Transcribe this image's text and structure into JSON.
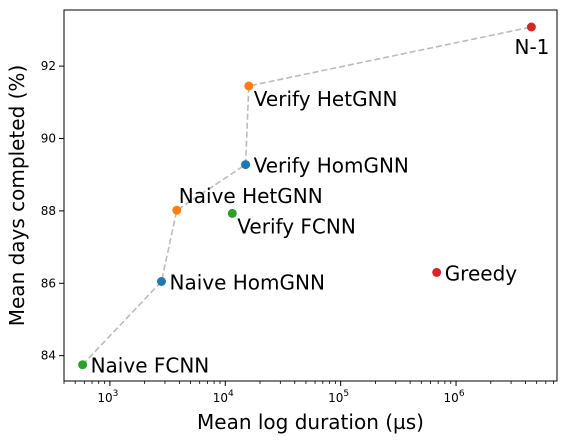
{
  "chart_data": {
    "type": "scatter",
    "xlabel": "Mean log duration (µs)",
    "ylabel": "Mean days completed (%)",
    "xscale": "log",
    "xlim": [
      400,
      7500000
    ],
    "ylim": [
      83.3,
      93.55
    ],
    "xticks": [
      {
        "value": 1000,
        "base": "10",
        "exp": "3"
      },
      {
        "value": 10000,
        "base": "10",
        "exp": "4"
      },
      {
        "value": 100000,
        "base": "10",
        "exp": "5"
      },
      {
        "value": 1000000,
        "base": "10",
        "exp": "6"
      }
    ],
    "yticks": [
      84,
      86,
      88,
      90,
      92
    ],
    "grid": false,
    "points": [
      {
        "label": "Naive FCNN",
        "x": 580,
        "y": 83.75,
        "color": "#2ca02c",
        "label_pos": "right"
      },
      {
        "label": "Naive HomGNN",
        "x": 2800,
        "y": 86.05,
        "color": "#1f77b4",
        "label_pos": "right"
      },
      {
        "label": "Naive HetGNN",
        "x": 3800,
        "y": 88.02,
        "color": "#ff7f0e",
        "label_pos": "above-right"
      },
      {
        "label": "Verify FCNN",
        "x": 11500,
        "y": 87.93,
        "color": "#2ca02c",
        "label_pos": "below-right"
      },
      {
        "label": "Verify HomGNN",
        "x": 15000,
        "y": 89.28,
        "color": "#1f77b4",
        "label_pos": "right"
      },
      {
        "label": "Verify HetGNN",
        "x": 16000,
        "y": 91.45,
        "color": "#ff7f0e",
        "label_pos": "below-right"
      },
      {
        "label": "Greedy",
        "x": 680000,
        "y": 86.3,
        "color": "#d62728",
        "label_pos": "right"
      },
      {
        "label": "N-1",
        "x": 4500000,
        "y": 93.08,
        "color": "#d62728",
        "label_pos": "below-left"
      }
    ],
    "frontier": {
      "color": "#bbbbbb",
      "style": "dashed",
      "points": [
        {
          "x": 580,
          "y": 83.75
        },
        {
          "x": 2800,
          "y": 86.05
        },
        {
          "x": 3800,
          "y": 88.02
        },
        {
          "x": 15000,
          "y": 89.28
        },
        {
          "x": 16000,
          "y": 91.45
        },
        {
          "x": 4500000,
          "y": 93.08
        }
      ]
    }
  }
}
